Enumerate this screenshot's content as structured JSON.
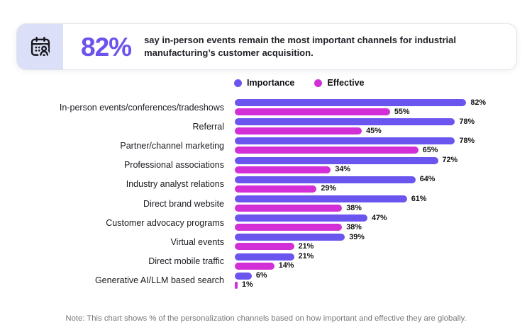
{
  "header": {
    "icon": "calendar-user-icon",
    "stat": "82%",
    "headline": "say in-person events remain the most important channels for industrial manufacturing’s customer acquisition."
  },
  "legend": [
    {
      "label": "Importance",
      "color": "#6b55ef"
    },
    {
      "label": "Effective",
      "color": "#d230d6"
    }
  ],
  "chart_data": {
    "type": "bar",
    "orientation": "horizontal",
    "grid": false,
    "legend_position": "top",
    "xlim": [
      0,
      100
    ],
    "value_suffix": "%",
    "categories": [
      "In-person events/conferences/tradeshows",
      "Referral",
      "Partner/channel marketing",
      "Professional associations",
      "Industry analyst relations",
      "Direct brand website",
      "Customer advocacy programs",
      "Virtual events",
      "Direct mobile traffic",
      "Generative AI/LLM based search"
    ],
    "series": [
      {
        "name": "Importance",
        "color": "#6b55ef",
        "values": [
          82,
          78,
          78,
          72,
          64,
          61,
          47,
          39,
          21,
          6
        ]
      },
      {
        "name": "Effective",
        "color": "#d230d6",
        "values": [
          55,
          45,
          65,
          34,
          29,
          38,
          38,
          21,
          14,
          1
        ]
      }
    ]
  },
  "note": "Note: This chart shows % of the personalization channels based on how important and effective they are globally."
}
